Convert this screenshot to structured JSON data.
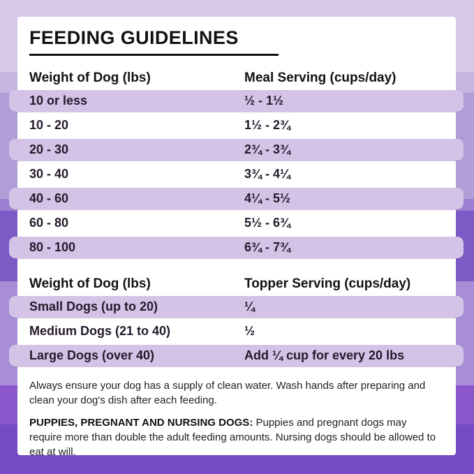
{
  "card": {
    "title": "FEEDING GUIDELINES"
  },
  "meal_table": {
    "col_weight": "Weight of Dog (lbs)",
    "col_serving": "Meal Serving (cups/day)",
    "rows": [
      {
        "weight": "10 or less",
        "serving": "½ - 1½"
      },
      {
        "weight": "10 - 20",
        "serving": "1½ - 2¾"
      },
      {
        "weight": "20 - 30",
        "serving": "2¾ - 3¾"
      },
      {
        "weight": "30 - 40",
        "serving": "3¾ - 4¼"
      },
      {
        "weight": "40 - 60",
        "serving": "4¼ - 5½"
      },
      {
        "weight": "60 - 80",
        "serving": "5½ - 6¾"
      },
      {
        "weight": "80 - 100",
        "serving": "6¾ - 7¾"
      }
    ]
  },
  "topper_table": {
    "col_weight": "Weight of Dog (lbs)",
    "col_serving": "Topper Serving (cups/day)",
    "rows": [
      {
        "weight": "Small Dogs (up to 20)",
        "serving": "¼"
      },
      {
        "weight": "Medium Dogs (21 to 40)",
        "serving": "½"
      },
      {
        "weight": "Large Dogs (over 40)",
        "serving": "Add ¼ cup for every 20 lbs"
      }
    ]
  },
  "notes": {
    "water_note": "Always ensure your dog has a supply of clean water. Wash hands after preparing and clean your dog's dish after each feeding.",
    "special_label": "PUPPIES, PREGNANT AND NURSING DOGS:",
    "special_note": "Puppies and pregnant dogs may require more than double the adult feeding amounts. Nursing dogs should be allowed to eat at will."
  },
  "colors": {
    "stripe": "#d4c3e7",
    "card_background": "#ffffff",
    "heading_text": "#121212",
    "row_text": "#231a2b",
    "border_purple_top": "#d7c8ea",
    "border_purple_bottom": "#744bc0"
  }
}
